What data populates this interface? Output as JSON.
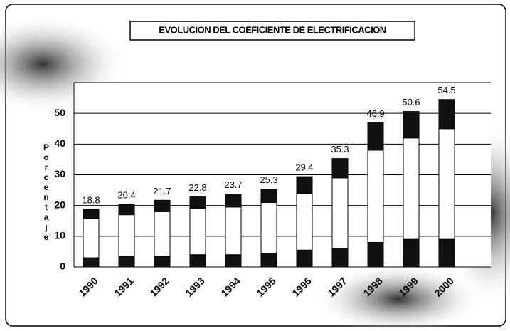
{
  "chart_data": {
    "type": "stacked-bar",
    "title": "EVOLUCION DEL COEFICIENTE DE ELECTRIFICACION",
    "y_label": "Porcentaje",
    "categories": [
      "1990",
      "1991",
      "1992",
      "1993",
      "1994",
      "1995",
      "1996",
      "1997",
      "1998",
      "1999",
      "2000"
    ],
    "series": [
      {
        "color": "#111111",
        "values": [
          3,
          3.5,
          3.5,
          4,
          4,
          4.5,
          5.5,
          6,
          8,
          9,
          9
        ]
      },
      {
        "color": "#ffffff",
        "values": [
          12.8,
          13.5,
          14.5,
          15,
          15.5,
          16.5,
          18.5,
          23,
          30,
          33,
          36
        ]
      },
      {
        "color": "#111111",
        "values": [
          3,
          3.4,
          3.7,
          3.8,
          4.2,
          4.3,
          5.4,
          6.3,
          8.9,
          8.6,
          9.5
        ]
      }
    ],
    "totals": [
      18.8,
      20.4,
      21.7,
      22.8,
      23.7,
      25.3,
      29.4,
      35.3,
      46.9,
      50.6,
      54.5
    ],
    "ylim": [
      0,
      60
    ],
    "yticks": [
      0,
      10,
      20,
      30,
      40,
      50
    ],
    "grid": true
  }
}
